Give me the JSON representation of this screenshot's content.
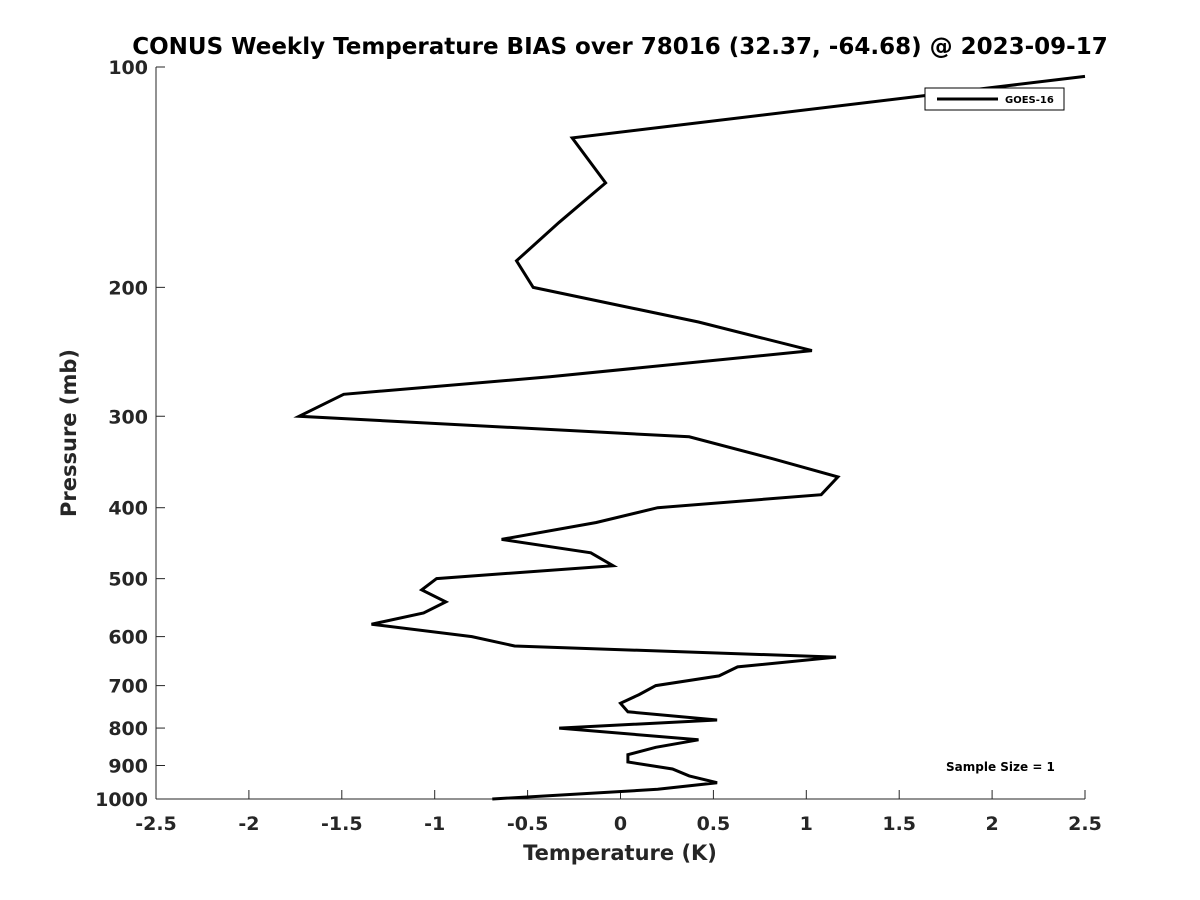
{
  "chart_data": {
    "type": "line",
    "title": "CONUS Weekly Temperature BIAS over 78016 (32.37, -64.68) @ 2023-09-17",
    "xlabel": "Temperature (K)",
    "ylabel": "Pressure (mb)",
    "xlim": [
      -2.5,
      2.5
    ],
    "ylim": [
      100,
      1000
    ],
    "y_scale": "log",
    "y_reversed": true,
    "x_ticks": [
      "-2.5",
      "-2",
      "-1.5",
      "-1",
      "-0.5",
      "0",
      "0.5",
      "1",
      "1.5",
      "2",
      "2.5"
    ],
    "y_ticks": [
      "100",
      "200",
      "300",
      "400",
      "500",
      "600",
      "700",
      "800",
      "900",
      "1000"
    ],
    "grid": false,
    "legend_position": "top-right",
    "annotation": "Sample Size = 1",
    "series": [
      {
        "name": "GOES-16",
        "color": "#000000",
        "points": [
          {
            "x": 2.5,
            "y": 103
          },
          {
            "x": -0.26,
            "y": 125
          },
          {
            "x": -0.08,
            "y": 144
          },
          {
            "x": -0.33,
            "y": 163
          },
          {
            "x": -0.56,
            "y": 184
          },
          {
            "x": -0.47,
            "y": 200
          },
          {
            "x": 0.42,
            "y": 223
          },
          {
            "x": 1.03,
            "y": 244
          },
          {
            "x": -0.38,
            "y": 265
          },
          {
            "x": -1.49,
            "y": 280
          },
          {
            "x": -1.73,
            "y": 300
          },
          {
            "x": 0.37,
            "y": 320
          },
          {
            "x": 0.82,
            "y": 343
          },
          {
            "x": 1.17,
            "y": 363
          },
          {
            "x": 1.08,
            "y": 384
          },
          {
            "x": 0.2,
            "y": 400
          },
          {
            "x": -0.13,
            "y": 419
          },
          {
            "x": -0.64,
            "y": 442
          },
          {
            "x": -0.16,
            "y": 461
          },
          {
            "x": -0.04,
            "y": 480
          },
          {
            "x": -0.99,
            "y": 500
          },
          {
            "x": -1.07,
            "y": 518
          },
          {
            "x": -0.94,
            "y": 538
          },
          {
            "x": -1.06,
            "y": 557
          },
          {
            "x": -1.34,
            "y": 577
          },
          {
            "x": -0.8,
            "y": 600
          },
          {
            "x": -0.57,
            "y": 618
          },
          {
            "x": 1.16,
            "y": 640
          },
          {
            "x": 0.63,
            "y": 660
          },
          {
            "x": 0.53,
            "y": 679
          },
          {
            "x": 0.19,
            "y": 700
          },
          {
            "x": 0.1,
            "y": 720
          },
          {
            "x": 0.0,
            "y": 740
          },
          {
            "x": 0.04,
            "y": 760
          },
          {
            "x": 0.52,
            "y": 780
          },
          {
            "x": -0.33,
            "y": 800
          },
          {
            "x": 0.42,
            "y": 830
          },
          {
            "x": 0.19,
            "y": 850
          },
          {
            "x": 0.04,
            "y": 870
          },
          {
            "x": 0.04,
            "y": 890
          },
          {
            "x": 0.28,
            "y": 910
          },
          {
            "x": 0.37,
            "y": 930
          },
          {
            "x": 0.52,
            "y": 950
          },
          {
            "x": 0.2,
            "y": 970
          },
          {
            "x": -0.69,
            "y": 1000
          }
        ]
      }
    ]
  }
}
